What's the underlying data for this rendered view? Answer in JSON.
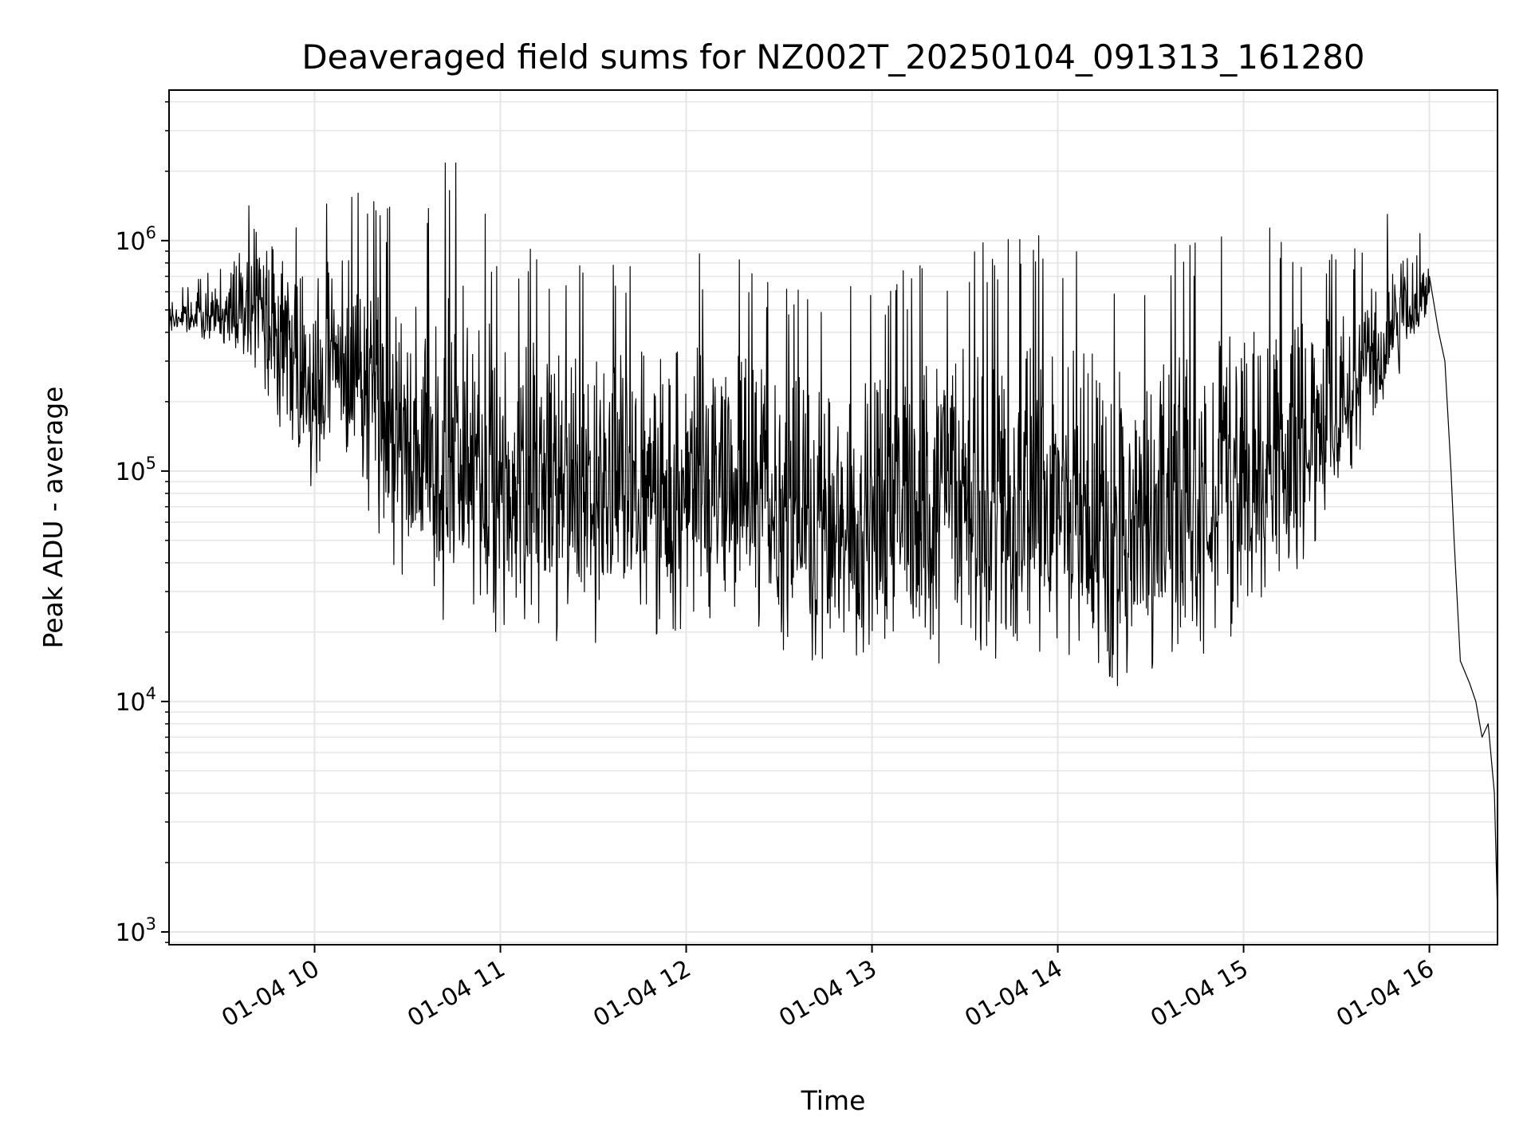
{
  "chart_data": {
    "type": "line",
    "title": "Deaveraged field sums for NZ002T_20250104_091313_161280",
    "xlabel": "Time",
    "ylabel": "Peak ADU - average",
    "x_tick_labels": [
      "01-04 10",
      "01-04 11",
      "01-04 12",
      "01-04 13",
      "01-04 14",
      "01-04 15",
      "01-04 16"
    ],
    "x_ticks": [
      "2025-01-04 10:00",
      "2025-01-04 11:00",
      "2025-01-04 12:00",
      "2025-01-04 13:00",
      "2025-01-04 14:00",
      "2025-01-04 15:00",
      "2025-01-04 16:00"
    ],
    "xlim": [
      "2025-01-04 09:13",
      "2025-01-04 16:22"
    ],
    "y_scale": "log",
    "y_ticks": [
      1000,
      10000,
      100000,
      1000000
    ],
    "ylim": [
      880,
      4500000
    ],
    "grid": true,
    "line_color": "#000000",
    "grid_color": "#e6e6e6",
    "series": [
      {
        "envelope": [
          {
            "x": "2025-01-04 09:13",
            "low": 400000,
            "high": 600000
          },
          {
            "x": "2025-01-04 09:30",
            "low": 350000,
            "high": 800000
          },
          {
            "x": "2025-01-04 09:40",
            "low": 300000,
            "high": 1800000
          },
          {
            "x": "2025-01-04 09:55",
            "low": 80000,
            "high": 1500000
          },
          {
            "x": "2025-01-04 10:10",
            "low": 100000,
            "high": 2200000
          },
          {
            "x": "2025-01-04 10:20",
            "low": 50000,
            "high": 1600000
          },
          {
            "x": "2025-01-04 10:30",
            "low": 30000,
            "high": 1200000
          },
          {
            "x": "2025-01-04 10:42",
            "low": 18000,
            "high": 3000000
          },
          {
            "x": "2025-01-04 11:00",
            "low": 20000,
            "high": 1000000
          },
          {
            "x": "2025-01-04 11:30",
            "low": 17000,
            "high": 900000
          },
          {
            "x": "2025-01-04 12:00",
            "low": 20000,
            "high": 900000
          },
          {
            "x": "2025-01-04 12:30",
            "low": 17000,
            "high": 800000
          },
          {
            "x": "2025-01-04 12:45",
            "low": 12000,
            "high": 600000
          },
          {
            "x": "2025-01-04 13:00",
            "low": 14000,
            "high": 700000
          },
          {
            "x": "2025-01-04 13:30",
            "low": 14000,
            "high": 1000000
          },
          {
            "x": "2025-01-04 14:00",
            "low": 15000,
            "high": 1100000
          },
          {
            "x": "2025-01-04 14:20",
            "low": 11000,
            "high": 900000
          },
          {
            "x": "2025-01-04 14:45",
            "low": 15000,
            "high": 1000000
          },
          {
            "x": "2025-01-04 15:00",
            "low": 20000,
            "high": 1200000
          },
          {
            "x": "2025-01-04 15:20",
            "low": 35000,
            "high": 1100000
          },
          {
            "x": "2025-01-04 15:35",
            "low": 100000,
            "high": 900000
          },
          {
            "x": "2025-01-04 15:50",
            "low": 250000,
            "high": 1500000
          },
          {
            "x": "2025-01-04 16:00",
            "low": 400000,
            "high": 1100000
          }
        ],
        "tail": [
          {
            "x": "2025-01-04 16:00",
            "y": 700000
          },
          {
            "x": "2025-01-04 16:03",
            "y": 400000
          },
          {
            "x": "2025-01-04 16:05",
            "y": 300000
          },
          {
            "x": "2025-01-04 16:07",
            "y": 100000
          },
          {
            "x": "2025-01-04 16:08",
            "y": 50000
          },
          {
            "x": "2025-01-04 16:10",
            "y": 15000
          },
          {
            "x": "2025-01-04 16:13",
            "y": 12000
          },
          {
            "x": "2025-01-04 16:15",
            "y": 10000
          },
          {
            "x": "2025-01-04 16:17",
            "y": 7000
          },
          {
            "x": "2025-01-04 16:19",
            "y": 8000
          },
          {
            "x": "2025-01-04 16:21",
            "y": 4000
          },
          {
            "x": "2025-01-04 16:22",
            "y": 1200
          }
        ]
      }
    ]
  }
}
